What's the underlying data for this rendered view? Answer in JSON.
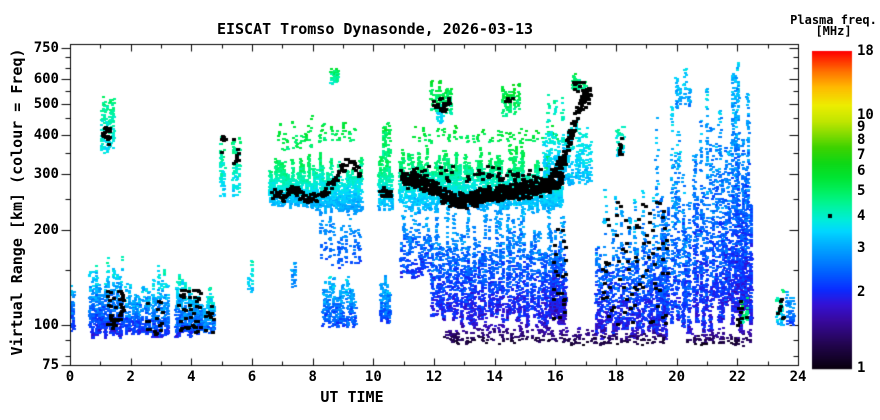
{
  "title": "EISCAT Tromso Dynasonde, 2026-03-13",
  "axes": {
    "x": {
      "label": "UT TIME",
      "min": 0,
      "max": 24,
      "scale": "linear",
      "major_ticks": [
        0,
        2,
        4,
        6,
        8,
        10,
        12,
        14,
        16,
        18,
        20,
        22,
        24
      ],
      "minor_ticks": [
        1,
        3,
        5,
        7,
        9,
        11,
        13,
        15,
        17,
        19,
        21,
        23
      ]
    },
    "y": {
      "label": "Virtual Range [km] (colour = Freq)",
      "min": 75,
      "max": 800,
      "scale": "log",
      "major_ticks": [
        750,
        600,
        500,
        400,
        300,
        200,
        100,
        75
      ],
      "minor_ticks": [
        700,
        650,
        550,
        450,
        350,
        250,
        150,
        90,
        80
      ]
    }
  },
  "colorbar": {
    "title_line1": "Plasma freq.",
    "title_line2": "[MHz]",
    "min": 1,
    "max": 18,
    "scale": "log",
    "tick_labels": [
      18,
      10,
      9,
      8,
      7,
      6,
      5,
      4,
      3,
      2,
      1
    ],
    "marker_freq": 4.0,
    "stops": [
      [
        1.0,
        "#0a000f"
      ],
      [
        1.25,
        "#230550"
      ],
      [
        1.55,
        "#38099e"
      ],
      [
        1.8,
        "#3312d6"
      ],
      [
        2.05,
        "#0a2cff"
      ],
      [
        2.4,
        "#0060ff"
      ],
      [
        2.8,
        "#0090ff"
      ],
      [
        3.15,
        "#00b4ff"
      ],
      [
        3.5,
        "#00d8ff"
      ],
      [
        3.85,
        "#00ecdc"
      ],
      [
        4.2,
        "#00f2b4"
      ],
      [
        4.6,
        "#00f488"
      ],
      [
        5.1,
        "#00ef5a"
      ],
      [
        5.7,
        "#00e532"
      ],
      [
        6.5,
        "#0ed816"
      ],
      [
        7.5,
        "#3ed200"
      ],
      [
        8.5,
        "#86dc00"
      ],
      [
        9.5,
        "#c0e600"
      ],
      [
        11,
        "#eded00"
      ],
      [
        13,
        "#ffb900"
      ],
      [
        15,
        "#ff7100"
      ],
      [
        18,
        "#ff0000"
      ]
    ]
  },
  "chart_data": {
    "type": "scatter",
    "title": "EISCAT Tromso Dynasonde, 2026-03-13",
    "xlabel": "UT TIME",
    "ylabel": "Virtual Range [km] (colour = Freq)",
    "xlim": [
      0,
      24
    ],
    "ylim": [
      75,
      800
    ],
    "y_scale": "log",
    "color_variable": "plasma frequency [MHz], log scale 1-18, rainbow colormap",
    "legend_position": "right colorbar",
    "description": "Ionosonde echo scatter: clusters give UT-hour span t0-t1, virtual-range span r0-r1 km, point count n, plasma frequency at cluster bottom/top (f0/f1 MHz), number of vertical sub-columns, vertical bias power p (>1 bottom-heavy), frequency jitter fj (log10). Black dots are echo-trace points (traces = waypoint paths [UT, km]).",
    "clusters": [
      {
        "t0": 0.02,
        "t1": 0.14,
        "r0": 95,
        "r1": 142,
        "n": 55,
        "f0": 2.0,
        "f1": 3.6,
        "cols": 2,
        "p": 1.2,
        "fj": 0.08
      },
      {
        "t0": 0.62,
        "t1": 1.78,
        "r0": 91,
        "r1": 168,
        "n": 650,
        "f0": 1.9,
        "f1": 4.2,
        "cols": 12,
        "p": 1.6,
        "fj": 0.09
      },
      {
        "t0": 1.82,
        "t1": 2.42,
        "r0": 92,
        "r1": 150,
        "n": 260,
        "f0": 2.0,
        "f1": 4.2,
        "cols": 6,
        "p": 1.5,
        "fj": 0.09
      },
      {
        "t0": 2.46,
        "t1": 3.28,
        "r0": 91,
        "r1": 158,
        "n": 400,
        "f0": 2.0,
        "f1": 4.5,
        "cols": 8,
        "p": 1.5,
        "fj": 0.09
      },
      {
        "t0": 3.45,
        "t1": 4.35,
        "r0": 90,
        "r1": 152,
        "n": 500,
        "f0": 2.0,
        "f1": 4.6,
        "cols": 9,
        "p": 1.5,
        "fj": 0.09
      },
      {
        "t0": 4.38,
        "t1": 4.78,
        "r0": 92,
        "r1": 138,
        "n": 170,
        "f0": 2.2,
        "f1": 4.8,
        "cols": 4,
        "p": 1.4,
        "fj": 0.09
      },
      {
        "t0": 1.0,
        "t1": 1.45,
        "r0": 335,
        "r1": 548,
        "n": 140,
        "f0": 3.4,
        "f1": 5.0,
        "cols": 5,
        "p": 1.0,
        "fj": 0.06
      },
      {
        "t0": 4.93,
        "t1": 5.12,
        "r0": 240,
        "r1": 430,
        "n": 60,
        "f0": 3.3,
        "f1": 5.0,
        "cols": 2,
        "p": 1.0,
        "fj": 0.06
      },
      {
        "t0": 5.35,
        "t1": 5.62,
        "r0": 245,
        "r1": 400,
        "n": 80,
        "f0": 3.4,
        "f1": 5.0,
        "cols": 3,
        "p": 1.0,
        "fj": 0.06
      },
      {
        "t0": 5.85,
        "t1": 6.05,
        "r0": 126,
        "r1": 168,
        "n": 30,
        "f0": 3.2,
        "f1": 4.4,
        "cols": 2,
        "p": 1.0,
        "fj": 0.06
      },
      {
        "t0": 7.28,
        "t1": 7.45,
        "r0": 128,
        "r1": 168,
        "n": 22,
        "f0": 2.4,
        "f1": 3.4,
        "cols": 2,
        "p": 1.0,
        "fj": 0.06
      },
      {
        "t0": 6.55,
        "t1": 8.02,
        "r0": 232,
        "r1": 348,
        "n": 850,
        "f0": 3.0,
        "f1": 5.6,
        "cols": 16,
        "p": 1.0,
        "fj": 0.05
      },
      {
        "t0": 6.8,
        "t1": 8.0,
        "r0": 352,
        "r1": 462,
        "n": 55,
        "f0": 4.8,
        "f1": 6.0,
        "cols": 8,
        "p": 1.0,
        "fj": 0.05
      },
      {
        "t0": 8.0,
        "t1": 9.62,
        "r0": 222,
        "r1": 368,
        "n": 950,
        "f0": 2.8,
        "f1": 5.6,
        "cols": 18,
        "p": 1.0,
        "fj": 0.05
      },
      {
        "t0": 8.1,
        "t1": 9.5,
        "r0": 372,
        "r1": 452,
        "n": 45,
        "f0": 4.8,
        "f1": 6.0,
        "cols": 7,
        "p": 1.0,
        "fj": 0.05
      },
      {
        "t0": 8.2,
        "t1": 9.6,
        "r0": 148,
        "r1": 222,
        "n": 140,
        "f0": 2.2,
        "f1": 3.0,
        "cols": 10,
        "p": 0.7,
        "fj": 0.07
      },
      {
        "t0": 8.3,
        "t1": 9.4,
        "r0": 97,
        "r1": 152,
        "n": 350,
        "f0": 2.2,
        "f1": 3.6,
        "cols": 10,
        "p": 1.4,
        "fj": 0.09
      },
      {
        "t0": 8.58,
        "t1": 8.84,
        "r0": 572,
        "r1": 658,
        "n": 55,
        "f0": 4.0,
        "f1": 5.4,
        "cols": 3,
        "p": 1.0,
        "fj": 0.06
      },
      {
        "t0": 10.26,
        "t1": 10.56,
        "r0": 330,
        "r1": 525,
        "n": 80,
        "f0": 4.6,
        "f1": 6.2,
        "cols": 3,
        "p": 1.0,
        "fj": 0.06
      },
      {
        "t0": 10.15,
        "t1": 10.62,
        "r0": 228,
        "r1": 352,
        "n": 270,
        "f0": 3.0,
        "f1": 5.6,
        "cols": 6,
        "p": 1.0,
        "fj": 0.05
      },
      {
        "t0": 10.2,
        "t1": 10.56,
        "r0": 100,
        "r1": 150,
        "n": 160,
        "f0": 2.2,
        "f1": 3.5,
        "cols": 5,
        "p": 1.3,
        "fj": 0.09
      },
      {
        "t0": 10.82,
        "t1": 16.25,
        "r0": 226,
        "r1": 372,
        "n": 3000,
        "f0": 3.0,
        "f1": 5.7,
        "cols": 55,
        "p": 1.0,
        "fj": 0.05
      },
      {
        "t0": 11.0,
        "t1": 16.1,
        "r0": 372,
        "r1": 438,
        "n": 110,
        "f0": 4.9,
        "f1": 6.3,
        "cols": 26,
        "p": 1.0,
        "fj": 0.05
      },
      {
        "t0": 11.9,
        "t1": 16.3,
        "r0": 98,
        "r1": 258,
        "n": 2400,
        "f0": 1.8,
        "f1": 3.3,
        "cols": 38,
        "p": 1.3,
        "fj": 0.09
      },
      {
        "t0": 10.85,
        "t1": 11.9,
        "r0": 140,
        "r1": 235,
        "n": 260,
        "f0": 2.0,
        "f1": 3.2,
        "cols": 11,
        "p": 1.1,
        "fj": 0.08
      },
      {
        "t0": 12.3,
        "t1": 16.35,
        "r0": 87,
        "r1": 104,
        "n": 220,
        "f0": 1.1,
        "f1": 1.9,
        "cols": 30,
        "p": 1.0,
        "fj": 0.07
      },
      {
        "t0": 11.88,
        "t1": 12.58,
        "r0": 462,
        "r1": 608,
        "n": 150,
        "f0": 4.4,
        "f1": 6.0,
        "cols": 6,
        "p": 1.0,
        "fj": 0.06
      },
      {
        "t0": 12.08,
        "t1": 12.3,
        "r0": 430,
        "r1": 565,
        "n": 40,
        "f0": 3.4,
        "f1": 4.3,
        "cols": 2,
        "p": 1.0,
        "fj": 0.05
      },
      {
        "t0": 14.2,
        "t1": 14.82,
        "r0": 452,
        "r1": 585,
        "n": 100,
        "f0": 4.4,
        "f1": 6.0,
        "cols": 5,
        "p": 1.0,
        "fj": 0.06
      },
      {
        "t0": 15.6,
        "t1": 17.18,
        "r0": 275,
        "r1": 555,
        "n": 500,
        "f0": 3.2,
        "f1": 4.5,
        "cols": 14,
        "p": 1.3,
        "fj": 0.06
      },
      {
        "t0": 16.5,
        "t1": 17.05,
        "r0": 545,
        "r1": 645,
        "n": 45,
        "f0": 4.4,
        "f1": 5.4,
        "cols": 3,
        "p": 1.0,
        "fj": 0.06
      },
      {
        "t0": 15.8,
        "t1": 16.35,
        "r0": 95,
        "r1": 235,
        "n": 320,
        "f0": 1.6,
        "f1": 3.2,
        "cols": 8,
        "p": 1.3,
        "fj": 0.09
      },
      {
        "t0": 18.0,
        "t1": 18.28,
        "r0": 330,
        "r1": 428,
        "n": 40,
        "f0": 3.4,
        "f1": 4.3,
        "cols": 2,
        "p": 1.0,
        "fj": 0.05
      },
      {
        "t0": 17.3,
        "t1": 19.65,
        "r0": 90,
        "r1": 275,
        "n": 1300,
        "f0": 1.8,
        "f1": 3.5,
        "cols": 26,
        "p": 1.5,
        "fj": 0.1
      },
      {
        "t0": 16.3,
        "t1": 19.6,
        "r0": 86,
        "r1": 101,
        "n": 150,
        "f0": 1.1,
        "f1": 1.8,
        "cols": 24,
        "p": 1.0,
        "fj": 0.07
      },
      {
        "t0": 19.3,
        "t1": 20.48,
        "r0": 94,
        "r1": 500,
        "n": 850,
        "f0": 2.0,
        "f1": 3.5,
        "cols": 10,
        "p": 1.6,
        "fj": 0.1
      },
      {
        "t0": 19.9,
        "t1": 20.45,
        "r0": 480,
        "r1": 645,
        "n": 70,
        "f0": 2.8,
        "f1": 3.6,
        "cols": 4,
        "p": 1.0,
        "fj": 0.07
      },
      {
        "t0": 20.52,
        "t1": 21.78,
        "r0": 94,
        "r1": 640,
        "n": 1250,
        "f0": 1.9,
        "f1": 3.4,
        "cols": 12,
        "p": 1.7,
        "fj": 0.1
      },
      {
        "t0": 21.8,
        "t1": 22.48,
        "r0": 93,
        "r1": 705,
        "n": 1400,
        "f0": 1.8,
        "f1": 3.4,
        "cols": 8,
        "p": 1.5,
        "fj": 0.1
      },
      {
        "t0": 22.08,
        "t1": 22.36,
        "r0": 100,
        "r1": 126,
        "n": 28,
        "f0": 4.4,
        "f1": 5.4,
        "cols": 2,
        "p": 1.0,
        "fj": 0.06
      },
      {
        "t0": 23.26,
        "t1": 23.56,
        "r0": 98,
        "r1": 130,
        "n": 40,
        "f0": 3.0,
        "f1": 5.0,
        "cols": 3,
        "p": 1.0,
        "fj": 0.08
      },
      {
        "t0": 23.6,
        "t1": 23.88,
        "r0": 99,
        "r1": 134,
        "n": 48,
        "f0": 2.2,
        "f1": 3.5,
        "cols": 3,
        "p": 1.0,
        "fj": 0.08
      },
      {
        "t0": 20.3,
        "t1": 22.45,
        "r0": 86,
        "r1": 99,
        "n": 110,
        "f0": 1.1,
        "f1": 1.8,
        "cols": 18,
        "p": 1.0,
        "fj": 0.07
      }
    ],
    "black_traces": [
      {
        "n": 22,
        "rj": 0.03,
        "path": [
          [
            1.02,
            400
          ],
          [
            1.15,
            408
          ],
          [
            1.3,
            392
          ]
        ]
      },
      {
        "n": 130,
        "rj": 0.022,
        "path": [
          [
            6.6,
            262
          ],
          [
            7.0,
            256
          ],
          [
            7.35,
            266
          ],
          [
            7.7,
            252
          ],
          [
            8.0,
            250
          ],
          [
            8.35,
            260
          ],
          [
            8.7,
            290
          ],
          [
            9.0,
            320
          ],
          [
            9.3,
            330
          ],
          [
            9.55,
            300
          ]
        ]
      },
      {
        "n": 28,
        "rj": 0.02,
        "path": [
          [
            10.2,
            268
          ],
          [
            10.4,
            258
          ],
          [
            10.55,
            262
          ]
        ]
      },
      {
        "n": 650,
        "rj": 0.03,
        "path": [
          [
            10.9,
            292
          ],
          [
            11.3,
            288
          ],
          [
            11.7,
            280
          ],
          [
            12.0,
            272
          ],
          [
            12.3,
            256
          ],
          [
            12.6,
            247
          ],
          [
            13.0,
            250
          ],
          [
            13.4,
            254
          ],
          [
            13.8,
            258
          ],
          [
            14.3,
            262
          ],
          [
            14.8,
            267
          ],
          [
            15.2,
            270
          ],
          [
            15.6,
            274
          ],
          [
            16.0,
            283
          ],
          [
            16.25,
            298
          ]
        ]
      },
      {
        "n": 140,
        "rj": 0.035,
        "path": [
          [
            15.85,
            298
          ],
          [
            16.1,
            315
          ],
          [
            16.3,
            345
          ],
          [
            16.5,
            400
          ],
          [
            16.7,
            460
          ],
          [
            16.85,
            505
          ],
          [
            17.0,
            525
          ],
          [
            17.1,
            540
          ]
        ]
      }
    ],
    "black_clusters": [
      {
        "t0": 1.2,
        "t1": 1.75,
        "r0": 96,
        "r1": 130,
        "n": 40
      },
      {
        "t0": 2.5,
        "t1": 3.05,
        "r0": 94,
        "r1": 120,
        "n": 16
      },
      {
        "t0": 3.55,
        "t1": 4.3,
        "r0": 94,
        "r1": 130,
        "n": 42
      },
      {
        "t0": 4.45,
        "t1": 4.72,
        "r0": 95,
        "r1": 116,
        "n": 9
      },
      {
        "t0": 4.96,
        "t1": 5.1,
        "r0": 348,
        "r1": 398,
        "n": 6
      },
      {
        "t0": 5.37,
        "t1": 5.56,
        "r0": 322,
        "r1": 388,
        "n": 8
      },
      {
        "t0": 11.0,
        "t1": 16.0,
        "r0": 284,
        "r1": 318,
        "n": 70
      },
      {
        "t0": 11.95,
        "t1": 12.5,
        "r0": 472,
        "r1": 522,
        "n": 22
      },
      {
        "t0": 14.32,
        "t1": 14.6,
        "r0": 490,
        "r1": 535,
        "n": 5
      },
      {
        "t0": 16.55,
        "t1": 16.95,
        "r0": 540,
        "r1": 595,
        "n": 12
      },
      {
        "t0": 18.05,
        "t1": 18.22,
        "r0": 348,
        "r1": 394,
        "n": 8
      },
      {
        "t0": 17.45,
        "t1": 19.75,
        "r0": 100,
        "r1": 245,
        "n": 80
      },
      {
        "t0": 15.9,
        "t1": 16.35,
        "r0": 100,
        "r1": 205,
        "n": 22
      },
      {
        "t0": 21.95,
        "t1": 22.3,
        "r0": 100,
        "r1": 122,
        "n": 9
      },
      {
        "t0": 23.3,
        "t1": 23.52,
        "r0": 102,
        "r1": 124,
        "n": 8
      }
    ]
  }
}
